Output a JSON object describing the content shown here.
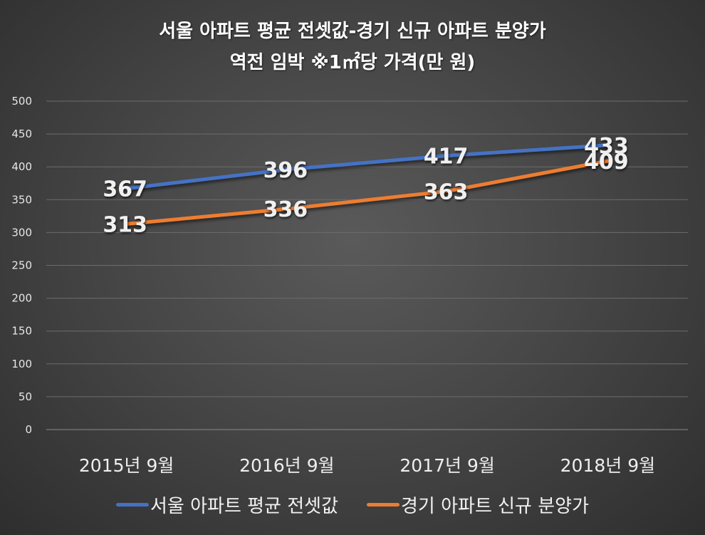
{
  "chart_data": {
    "type": "line",
    "title": "서울 아파트 평균 전셋값-경기 신규 아파트 분양가",
    "subtitle": "역전 임박 ※1㎡당 가격(만 원)",
    "categories": [
      "2015년 9월",
      "2016년 9월",
      "2017년 9월",
      "2018년 9월"
    ],
    "series": [
      {
        "name": "서울 아파트 평균 전셋값",
        "color": "#4472c4",
        "values": [
          367,
          396,
          417,
          433
        ]
      },
      {
        "name": "경기 아파트 신규 분양가",
        "color": "#ed7d31",
        "values": [
          313,
          336,
          363,
          409
        ]
      }
    ],
    "ylim": [
      0,
      500
    ],
    "yticks": [
      0,
      50,
      100,
      150,
      200,
      250,
      300,
      350,
      400,
      450,
      500
    ],
    "grid": true,
    "legend_position": "bottom"
  }
}
